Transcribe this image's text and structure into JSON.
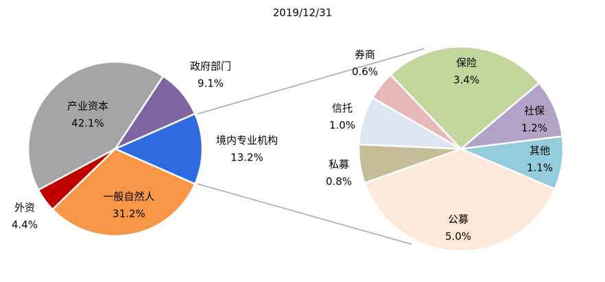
{
  "chart_data": [
    {
      "type": "pie",
      "title": "2019/12/31",
      "categories": [
        "产业资本",
        "政府部门",
        "境内专业机构",
        "一般自然人",
        "外资"
      ],
      "values": [
        42.1,
        9.1,
        13.2,
        31.2,
        4.4
      ],
      "value_labels": [
        "42.1%",
        "9.1%",
        "13.2%",
        "31.2%",
        "4.4%"
      ],
      "colors": [
        "#a5a5a5",
        "#8064a2",
        "#2e6be0",
        "#f79646",
        "#c00000"
      ]
    },
    {
      "type": "pie",
      "categories": [
        "券商",
        "保险",
        "社保",
        "其他",
        "公募",
        "私募",
        "信托"
      ],
      "values": [
        0.6,
        3.4,
        1.2,
        1.1,
        5.0,
        0.8,
        1.0
      ],
      "value_labels": [
        "0.6%",
        "3.4%",
        "1.2%",
        "1.1%",
        "5.0%",
        "0.8%",
        "1.0%"
      ],
      "colors": [
        "#e6b9b8",
        "#c3d69b",
        "#b3a2c7",
        "#93cddd",
        "#fde9d9",
        "#c4bd97",
        "#dce6f2"
      ]
    }
  ]
}
